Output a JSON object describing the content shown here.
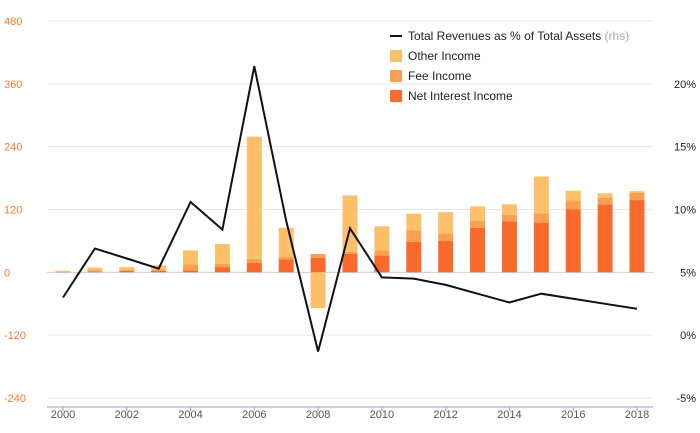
{
  "chart_data": {
    "type": "bar",
    "stacked": true,
    "x": [
      2000,
      2001,
      2002,
      2003,
      2004,
      2005,
      2006,
      2007,
      2008,
      2009,
      2010,
      2011,
      2012,
      2013,
      2014,
      2015,
      2016,
      2017,
      2018
    ],
    "x_tick_labels": [
      "2000",
      "2002",
      "2004",
      "2006",
      "2008",
      "2010",
      "2012",
      "2014",
      "2016",
      "2018"
    ],
    "left_axis": {
      "ylim": [
        -240,
        480
      ],
      "ticks": [
        "-240",
        "-120",
        "0",
        "120",
        "240",
        "360",
        "480"
      ]
    },
    "right_axis": {
      "ylim": [
        -5,
        25
      ],
      "ticks": [
        "-5%",
        "0%",
        "5%",
        "10%",
        "15%",
        "20%"
      ]
    },
    "grid": "horizontal",
    "legend_position": "top-right",
    "series": [
      {
        "name": "Net Interest Income",
        "kind": "bar",
        "axis": "left",
        "color": "#f96a2c",
        "values": [
          1,
          2,
          3,
          3,
          4,
          10,
          18,
          25,
          28,
          35,
          32,
          58,
          60,
          85,
          97,
          95,
          120,
          130,
          138
        ]
      },
      {
        "name": "Fee Income",
        "kind": "bar",
        "axis": "left",
        "color": "#fba052",
        "values": [
          1,
          2,
          2,
          3,
          11,
          6,
          8,
          5,
          7,
          4,
          10,
          22,
          14,
          13,
          13,
          18,
          17,
          12,
          14
        ]
      },
      {
        "name": "Other Income",
        "kind": "bar",
        "axis": "left",
        "color": "#fdc06a",
        "values": [
          1,
          5,
          5,
          7,
          27,
          38,
          233,
          55,
          -68,
          108,
          46,
          32,
          41,
          28,
          20,
          70,
          19,
          9,
          3
        ]
      },
      {
        "name": "Total Revenues as % of Total Assets",
        "name_suffix": "(rhs)",
        "kind": "line",
        "axis": "right",
        "color": "#111111",
        "values": [
          3.0,
          6.9,
          6.1,
          5.3,
          10.6,
          8.4,
          21.4,
          9.1,
          -1.3,
          8.5,
          4.6,
          4.5,
          4.0,
          3.3,
          2.6,
          3.3,
          2.9,
          2.5,
          2.1
        ]
      }
    ]
  }
}
